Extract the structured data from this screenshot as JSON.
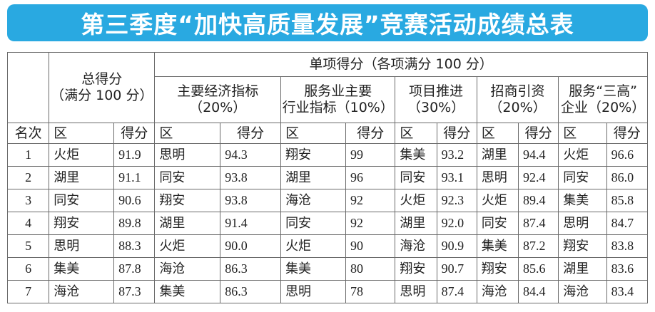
{
  "title": "第三季度“加快高质量发展”竞赛活动成绩总表",
  "header": {
    "total_label": "总得分\n（满分 100 分）",
    "single_label": "单项得分（各项满分 100 分）",
    "categories": [
      "主要经济指标\n（20%）",
      "服务业主要\n行业指标（10%）",
      "项目推进\n（30%）",
      "招商引资\n（20%）",
      "服务“三高”\n企业（20%）"
    ],
    "rank_label": "名次",
    "district_label": "区",
    "score_label": "得分"
  },
  "rows": [
    {
      "rank": "1",
      "total": [
        "火炬",
        "91.9"
      ],
      "cols": [
        [
          "思明",
          "94.3"
        ],
        [
          "翔安",
          "99"
        ],
        [
          "集美",
          "93.2"
        ],
        [
          "湖里",
          "94.4"
        ],
        [
          "火炬",
          "96.6"
        ]
      ]
    },
    {
      "rank": "2",
      "total": [
        "湖里",
        "91.1"
      ],
      "cols": [
        [
          "同安",
          "93.8"
        ],
        [
          "湖里",
          "96"
        ],
        [
          "同安",
          "93.1"
        ],
        [
          "思明",
          "92.4"
        ],
        [
          "同安",
          "86.0"
        ]
      ]
    },
    {
      "rank": "3",
      "total": [
        "同安",
        "90.6"
      ],
      "cols": [
        [
          "翔安",
          "93.8"
        ],
        [
          "海沧",
          "92"
        ],
        [
          "火炬",
          "92.3"
        ],
        [
          "火炬",
          "89.4"
        ],
        [
          "集美",
          "85.8"
        ]
      ]
    },
    {
      "rank": "4",
      "total": [
        "翔安",
        "89.8"
      ],
      "cols": [
        [
          "湖里",
          "91.4"
        ],
        [
          "同安",
          "92"
        ],
        [
          "湖里",
          "92.0"
        ],
        [
          "同安",
          "87.4"
        ],
        [
          "思明",
          "84.7"
        ]
      ]
    },
    {
      "rank": "5",
      "total": [
        "思明",
        "88.3"
      ],
      "cols": [
        [
          "火炬",
          "90.0"
        ],
        [
          "火炬",
          "90"
        ],
        [
          "海沧",
          "90.9"
        ],
        [
          "集美",
          "87.2"
        ],
        [
          "翔安",
          "83.8"
        ]
      ]
    },
    {
      "rank": "6",
      "total": [
        "集美",
        "87.8"
      ],
      "cols": [
        [
          "海沧",
          "86.3"
        ],
        [
          "集美",
          "80"
        ],
        [
          "翔安",
          "90.7"
        ],
        [
          "翔安",
          "85.6"
        ],
        [
          "湖里",
          "83.6"
        ]
      ]
    },
    {
      "rank": "7",
      "total": [
        "海沧",
        "87.3"
      ],
      "cols": [
        [
          "集美",
          "86.3"
        ],
        [
          "思明",
          "78"
        ],
        [
          "思明",
          "87.4"
        ],
        [
          "海沧",
          "84.4"
        ],
        [
          "海沧",
          "83.4"
        ]
      ]
    }
  ]
}
